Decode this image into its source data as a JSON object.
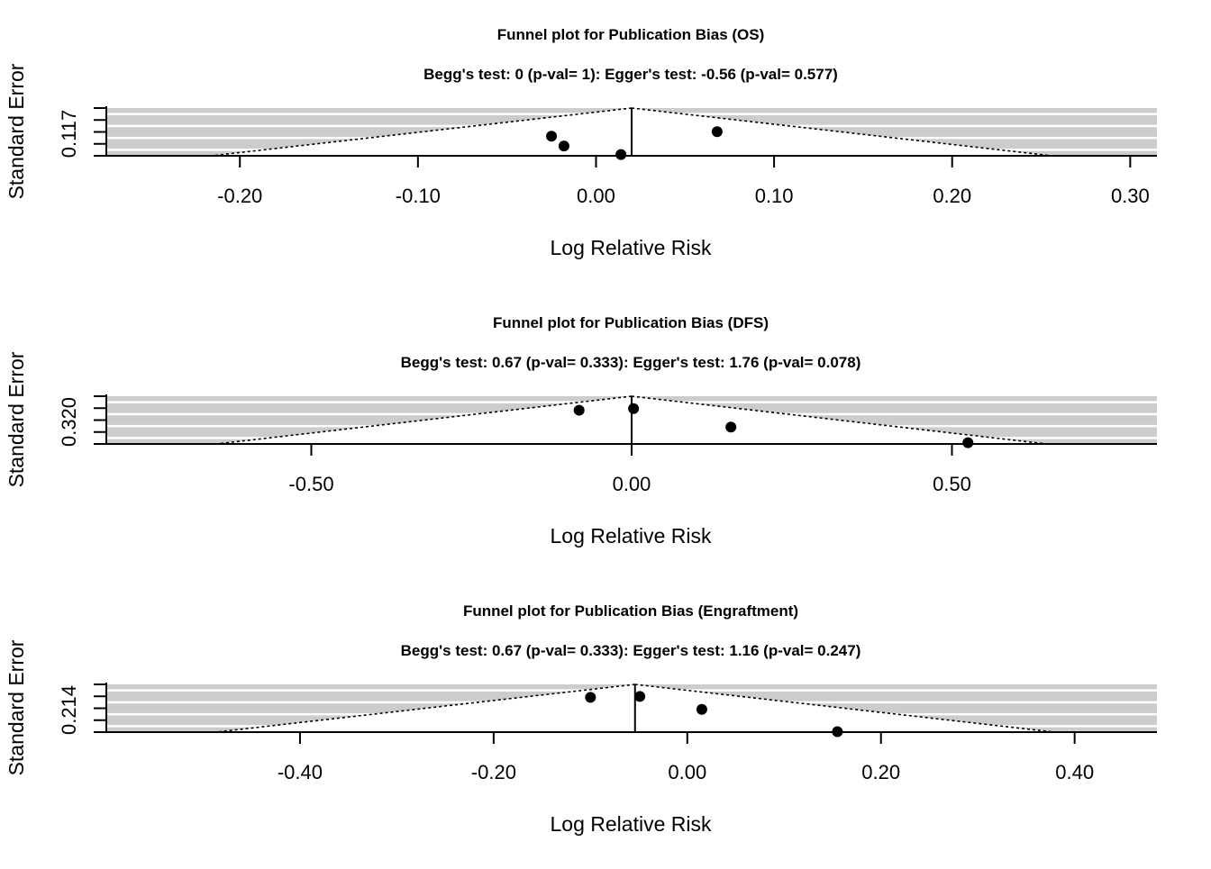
{
  "colors": {
    "shade": "#cccccc",
    "stripe": "#ffffff",
    "ink": "#000000"
  },
  "chart_data": [
    {
      "type": "scatter",
      "title": "Funnel plot for Publication Bias (OS)",
      "subtitle": "Begg's test: 0 (p-val= 1): Egger's test: -0.56 (p-val= 0.577)",
      "xlabel": "Log Relative Risk",
      "ylabel": "Standard Error",
      "y_tick_label": "0.117",
      "xlim": [
        -0.275,
        0.315
      ],
      "ylim": [
        0.117,
        0
      ],
      "x_ticks": [
        -0.2,
        -0.1,
        0.0,
        0.1,
        0.2,
        0.3
      ],
      "x_tick_labels": [
        "-0.20",
        "-0.10",
        "0.00",
        "0.10",
        "0.20",
        "0.30"
      ],
      "center": 0.02,
      "funnel_half_width_at_max": 0.236,
      "points": [
        {
          "x": -0.025,
          "y": 0.069
        },
        {
          "x": -0.018,
          "y": 0.093
        },
        {
          "x": 0.014,
          "y": 0.114
        },
        {
          "x": 0.068,
          "y": 0.058
        }
      ]
    },
    {
      "type": "scatter",
      "title": "Funnel plot for Publication Bias (DFS)",
      "subtitle": "Begg's test: 0.67 (p-val= 0.333): Egger's test: 1.76 (p-val= 0.078)",
      "xlabel": "Log Relative Risk",
      "ylabel": "Standard Error",
      "y_tick_label": "0.320",
      "xlim": [
        -0.82,
        0.82
      ],
      "ylim": [
        0.32,
        0
      ],
      "x_ticks": [
        -0.5,
        0.0,
        0.5
      ],
      "x_tick_labels": [
        "-0.50",
        "0.00",
        "0.50"
      ],
      "center": 0.0,
      "funnel_half_width_at_max": 0.648,
      "points": [
        {
          "x": -0.082,
          "y": 0.094
        },
        {
          "x": 0.003,
          "y": 0.083
        },
        {
          "x": 0.155,
          "y": 0.207
        },
        {
          "x": 0.525,
          "y": 0.312
        }
      ]
    },
    {
      "type": "scatter",
      "title": "Funnel plot for Publication Bias (Engraftment)",
      "subtitle": "Begg's test: 0.67 (p-val= 0.333): Egger's test: 1.16 (p-val= 0.247)",
      "xlabel": "Log Relative Risk",
      "ylabel": "Standard Error",
      "y_tick_label": "0.214",
      "xlim": [
        -0.6,
        0.485
      ],
      "ylim": [
        0.214,
        0
      ],
      "x_ticks": [
        -0.4,
        -0.2,
        0.0,
        0.2,
        0.4
      ],
      "x_tick_labels": [
        "-0.40",
        "-0.20",
        "0.00",
        "0.20",
        "0.40"
      ],
      "center": -0.054,
      "funnel_half_width_at_max": 0.433,
      "points": [
        {
          "x": -0.1,
          "y": 0.058
        },
        {
          "x": -0.049,
          "y": 0.054
        },
        {
          "x": 0.015,
          "y": 0.112
        },
        {
          "x": 0.155,
          "y": 0.212
        }
      ]
    }
  ]
}
